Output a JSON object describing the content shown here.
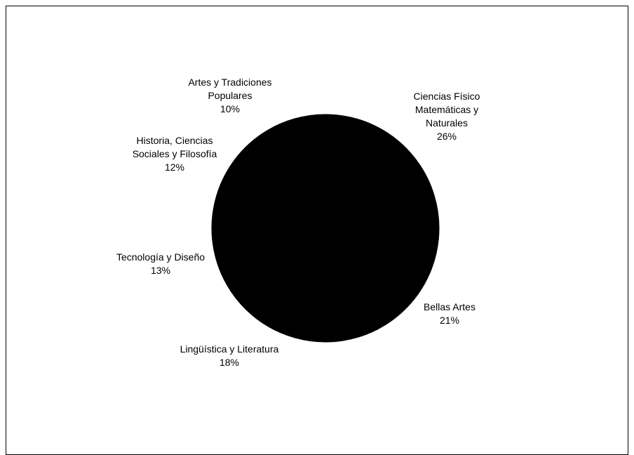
{
  "chart_data": {
    "type": "pie",
    "title": "",
    "start_angle_deg": -88,
    "direction": "clockwise",
    "slice_color": "#000000",
    "edge_color": "#000000",
    "slices": [
      {
        "label_lines": [
          "Ciencias Físico",
          "Matemáticas y",
          "Naturales"
        ],
        "percent_label": "26%",
        "value": 26
      },
      {
        "label_lines": [
          "Bellas Artes"
        ],
        "percent_label": "21%",
        "value": 21
      },
      {
        "label_lines": [
          "Lingüística y Literatura"
        ],
        "percent_label": "18%",
        "value": 18
      },
      {
        "label_lines": [
          "Tecnología y Diseño"
        ],
        "percent_label": "13%",
        "value": 13
      },
      {
        "label_lines": [
          "Historia, Ciencias",
          "Sociales  y  Filosofía"
        ],
        "percent_label": "12%",
        "value": 12
      },
      {
        "label_lines": [
          "Artes y Tradiciones",
          "Populares"
        ],
        "percent_label": "10%",
        "value": 10
      }
    ]
  }
}
